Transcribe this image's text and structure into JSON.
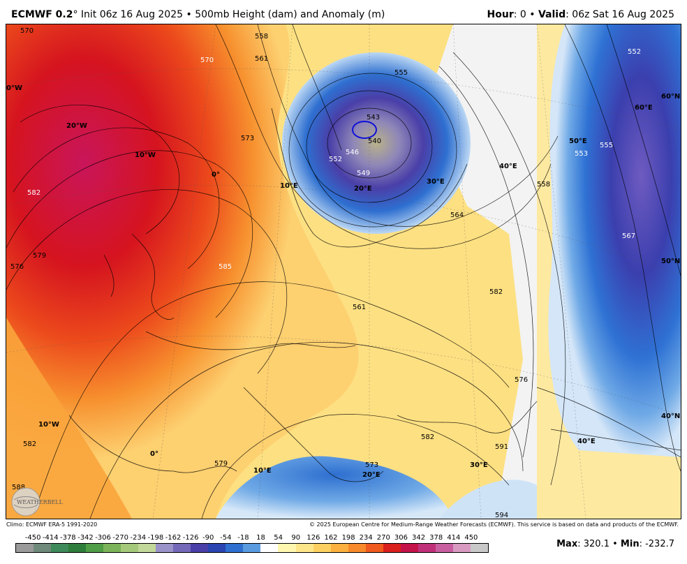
{
  "header": {
    "model": "ECMWF 0.2",
    "degree": "°",
    "init": "Init 06z 16 Aug 2025",
    "bullet": "•",
    "product": "500mb Height (dam) and Anomaly (m)",
    "hour_label": "Hour",
    "hour_value": ": 0",
    "valid_label": "Valid",
    "valid_value": ": 06z Sat 16 Aug 2025"
  },
  "map": {
    "contour_labels": [
      "570",
      "558",
      "561",
      "570",
      "573",
      "582",
      "579",
      "576",
      "585",
      "555",
      "543",
      "540",
      "546",
      "552",
      "549",
      "552",
      "555",
      "553",
      "558",
      "564",
      "567",
      "561",
      "582",
      "576",
      "573",
      "582",
      "579",
      "582",
      "588",
      "591",
      "594",
      "585"
    ],
    "lon_lat_labels": [
      "0°W",
      "20°W",
      "10°W",
      "0°",
      "10°E",
      "20°E",
      "30°E",
      "40°E",
      "50°E",
      "60°E",
      "60°N",
      "50°N",
      "40°N",
      "10°W",
      "0°",
      "10°E",
      "20°E",
      "30°E",
      "40°E"
    ]
  },
  "footer": {
    "climo": "Climo: ECMWF ERA-5 1991-2020",
    "copyright": "© 2025 European Centre for Medium-Range Weather Forecasts (ECMWF). This service is based on data and products of the ECMWF.",
    "logo_text": "WEATHERBELL"
  },
  "colorbar": {
    "ticks": [
      "-450",
      "-414",
      "-378",
      "-342",
      "-306",
      "-270",
      "-234",
      "-198",
      "-162",
      "-126",
      "-90",
      "-54",
      "-18",
      "18",
      "54",
      "90",
      "126",
      "162",
      "198",
      "234",
      "270",
      "306",
      "342",
      "378",
      "414",
      "450"
    ],
    "colors": [
      "#9a9a9a",
      "#6f8a7a",
      "#3e8a5a",
      "#2e7d3a",
      "#4f9d46",
      "#7ab35a",
      "#a5c97a",
      "#c2d89a",
      "#9a93c9",
      "#7468b8",
      "#4a3fa8",
      "#2a44b0",
      "#2e6fd0",
      "#5a9be0",
      "#ffffff",
      "#fff6b0",
      "#fde68a",
      "#fcd060",
      "#fbb040",
      "#f78a2a",
      "#ef5a1e",
      "#d9201c",
      "#c4134a",
      "#c0307a",
      "#c85ea0",
      "#d89ac0",
      "#c8c8c8"
    ],
    "max_label": "Max",
    "max_value": ": 320.1",
    "min_label": "Min",
    "min_value": ": -232.7"
  },
  "colors": {
    "positive_high": "#c8102e",
    "positive_mid": "#f26a1f",
    "positive_low": "#fde58a",
    "negative_low": "#cfe3f7",
    "negative_mid": "#3f7fd6",
    "negative_high": "#3a2fa0"
  }
}
